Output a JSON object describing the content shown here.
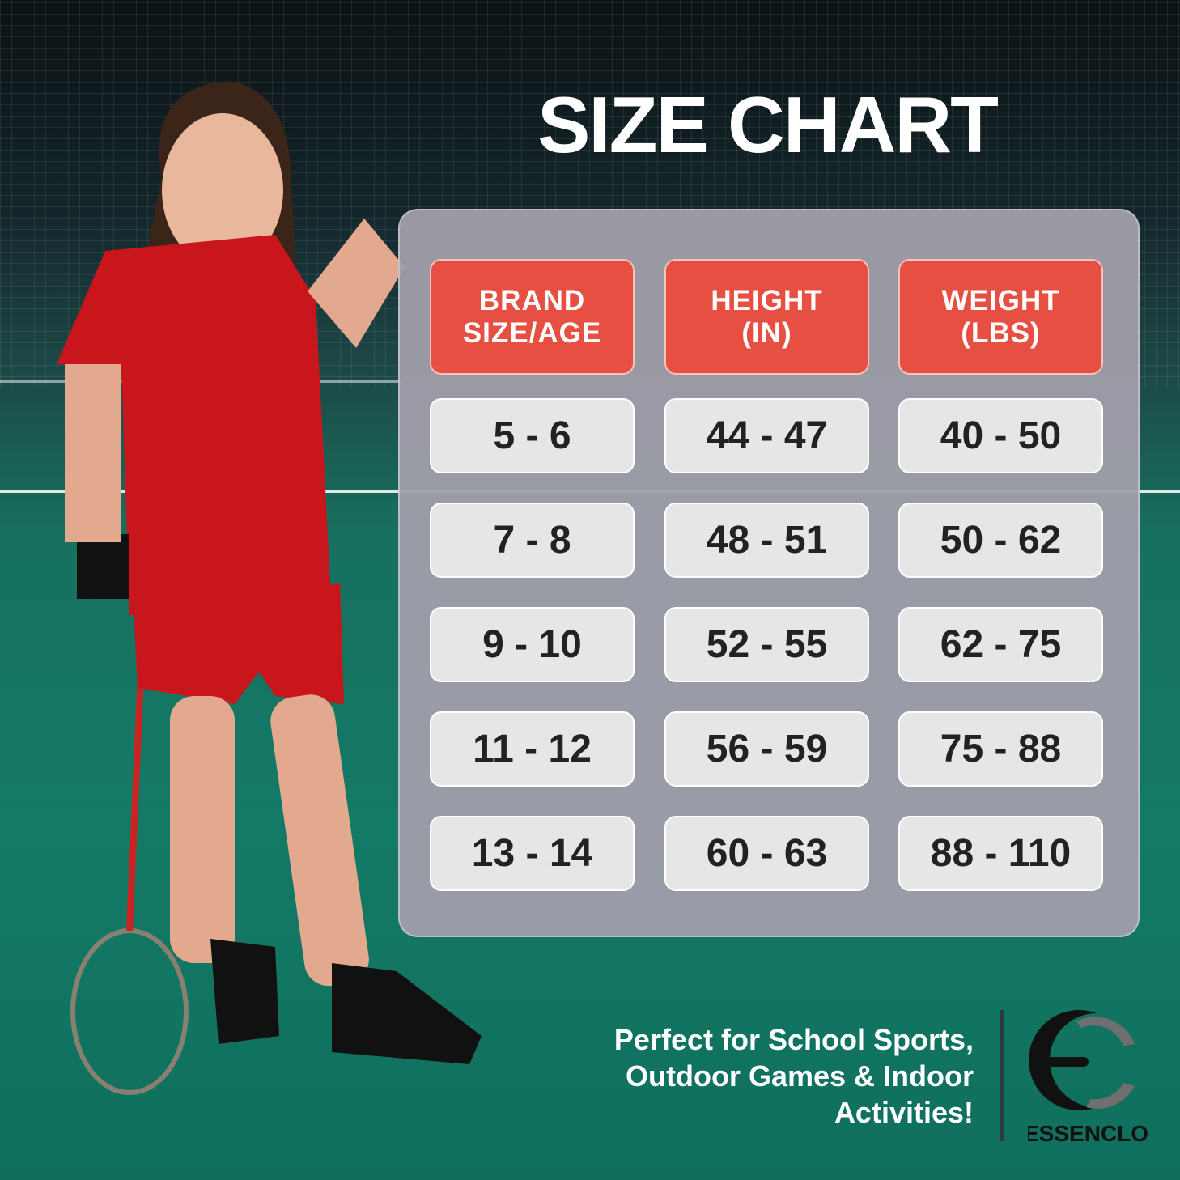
{
  "title": "SIZE CHART",
  "table": {
    "headers": [
      "BRAND\nSIZE/AGE",
      "HEIGHT\n(IN)",
      "WEIGHT\n(LBS)"
    ],
    "rows": [
      [
        "5 - 6",
        "44 - 47",
        "40 - 50"
      ],
      [
        "7 - 8",
        "48 - 51",
        "50 - 62"
      ],
      [
        "9 - 10",
        "52 - 55",
        "62 - 75"
      ],
      [
        "11 - 12",
        "56 - 59",
        "75 - 88"
      ],
      [
        "13 - 14",
        "60 - 63",
        "88 - 110"
      ]
    ]
  },
  "tagline": [
    "Perfect for School Sports,",
    "Outdoor Games & Indoor",
    "Activities!"
  ],
  "brand": {
    "name": "ESSENCLO",
    "logo_letters": "EC"
  },
  "colors": {
    "header": "#e64f41",
    "cell": "#e6e6e6",
    "panel": "#a09eaa",
    "court": "#137a66"
  }
}
